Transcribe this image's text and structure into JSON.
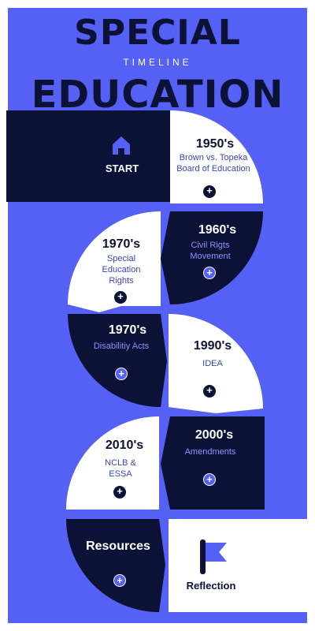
{
  "title": {
    "line1": "SPECIAL",
    "subtitle": "TIMELINE",
    "line2": "EDUCATION"
  },
  "start": {
    "label": "START",
    "icon": "home-icon"
  },
  "timeline": [
    {
      "era": "1950's",
      "text": "Brown vs. Topeka Board of Education"
    },
    {
      "era": "1960's",
      "text": "Civil Rigts Movement"
    },
    {
      "era": "1970's",
      "text": "Special Education Rights"
    },
    {
      "era": "1970's",
      "text": "Disabilitiy Acts"
    },
    {
      "era": "1990's",
      "text": "IDEA"
    },
    {
      "era": "2000's",
      "text": "Amendments"
    },
    {
      "era": "2010's",
      "text": "NCLB & ESSA"
    }
  ],
  "resources": {
    "label": "Resources"
  },
  "reflection": {
    "label": "Reflection",
    "icon": "flag-icon"
  },
  "plus_symbol": "+",
  "colors": {
    "blue": "#5560f5",
    "navy": "#0b1236",
    "white": "#ffffff",
    "accent_text": "#8b93ff"
  }
}
